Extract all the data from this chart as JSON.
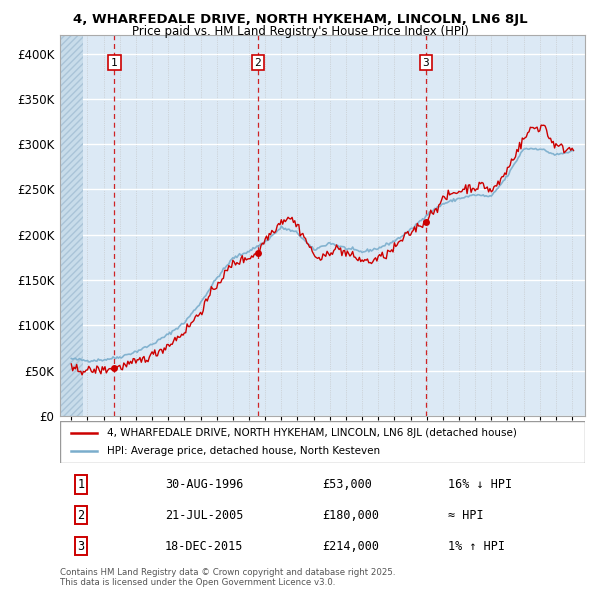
{
  "title_line1": "4, WHARFEDALE DRIVE, NORTH HYKEHAM, LINCOLN, LN6 8JL",
  "title_line2": "Price paid vs. HM Land Registry's House Price Index (HPI)",
  "background_color": "#ffffff",
  "plot_bg_color": "#dce9f5",
  "grid_color": "#ffffff",
  "red_line_color": "#cc0000",
  "blue_line_color": "#7aadcc",
  "sale_marker_color": "#cc0000",
  "ylim": [
    0,
    420000
  ],
  "yticks": [
    0,
    50000,
    100000,
    150000,
    200000,
    250000,
    300000,
    350000,
    400000
  ],
  "xlim_start": 1993.3,
  "xlim_end": 2025.8,
  "legend_red_label": "4, WHARFEDALE DRIVE, NORTH HYKEHAM, LINCOLN, LN6 8JL (detached house)",
  "legend_blue_label": "HPI: Average price, detached house, North Kesteven",
  "sale1_num": "1",
  "sale1_date": "30-AUG-1996",
  "sale1_price": "£53,000",
  "sale1_hpi": "16% ↓ HPI",
  "sale1_year": 1996.67,
  "sale1_value": 53000,
  "sale2_num": "2",
  "sale2_date": "21-JUL-2005",
  "sale2_price": "£180,000",
  "sale2_hpi": "≈ HPI",
  "sale2_year": 2005.55,
  "sale2_value": 180000,
  "sale3_num": "3",
  "sale3_date": "18-DEC-2015",
  "sale3_price": "£214,000",
  "sale3_hpi": "1% ↑ HPI",
  "sale3_year": 2015.96,
  "sale3_value": 214000,
  "dashed_line_color": "#cc0000",
  "copyright_text": "Contains HM Land Registry data © Crown copyright and database right 2025.\nThis data is licensed under the Open Government Licence v3.0."
}
